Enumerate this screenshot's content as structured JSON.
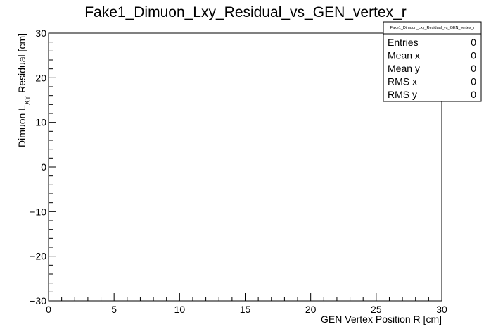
{
  "chart_data": {
    "type": "scatter",
    "title": "Fake1_Dimuon_Lxy_Residual_vs_GEN_vertex_r",
    "xlabel": "GEN Vertex Position R [cm]",
    "ylabel_main": "Dimuon L",
    "ylabel_sub": "XY",
    "ylabel_rest": " Residual [cm]",
    "xlim": [
      0,
      30
    ],
    "ylim": [
      -30,
      30
    ],
    "xticks": [
      0,
      5,
      10,
      15,
      20,
      25,
      30
    ],
    "xtick_labels": [
      "0",
      "5",
      "10",
      "15",
      "20",
      "25",
      "30"
    ],
    "yticks": [
      -30,
      -20,
      -10,
      0,
      10,
      20,
      30
    ],
    "ytick_labels": [
      "−30",
      "−20",
      "−10",
      "0",
      "10",
      "20",
      "30"
    ],
    "grid": false,
    "points": [],
    "stats": {
      "title": "Fake1_Dimuon_Lxy_Residual_vs_GEN_vertex_r",
      "placement": "top-right",
      "rows": [
        {
          "label": "Entries",
          "value": "0"
        },
        {
          "label": "Mean x",
          "value": "0"
        },
        {
          "label": "Mean y",
          "value": "0"
        },
        {
          "label": "RMS x",
          "value": "0"
        },
        {
          "label": "RMS y",
          "value": "0"
        }
      ]
    }
  }
}
